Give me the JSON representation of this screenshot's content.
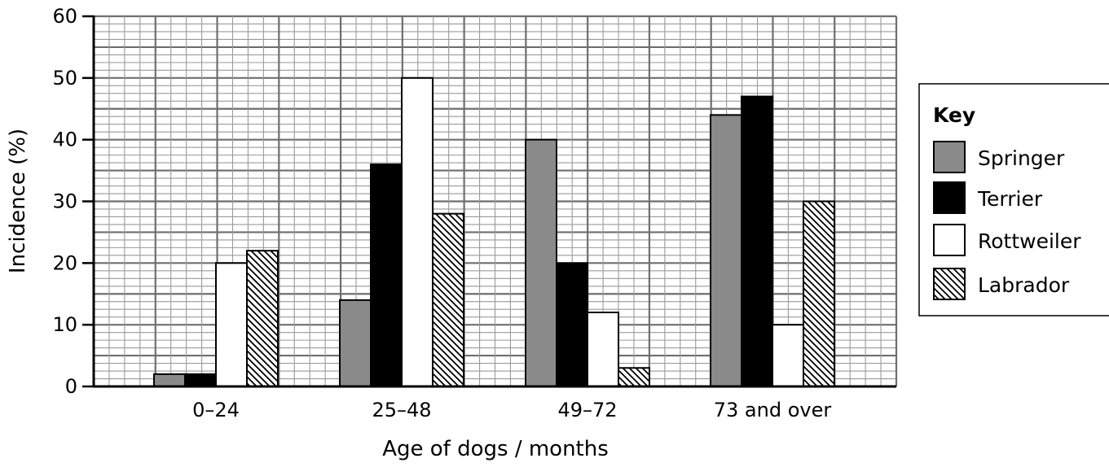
{
  "chart_data": {
    "type": "bar",
    "title": "",
    "xlabel": "Age of dogs / months",
    "ylabel": "Incidence (%)",
    "ylim": [
      0,
      60
    ],
    "yticks": [
      0,
      10,
      20,
      30,
      40,
      50,
      60
    ],
    "grid": true,
    "categories": [
      "0–24",
      "25–48",
      "49–72",
      "73 and over"
    ],
    "series": [
      {
        "name": "Springer",
        "fill": "#8a8a8a",
        "hatch": false,
        "values": [
          2,
          14,
          40,
          44
        ]
      },
      {
        "name": "Terrier",
        "fill": "#000000",
        "hatch": false,
        "values": [
          2,
          36,
          20,
          47
        ]
      },
      {
        "name": "Rottweiler",
        "fill": "#ffffff",
        "hatch": false,
        "values": [
          20,
          50,
          12,
          10
        ]
      },
      {
        "name": "Labrador",
        "fill": "#ffffff",
        "hatch": true,
        "values": [
          22,
          28,
          3,
          30
        ]
      }
    ],
    "legend": {
      "title": "Key",
      "position": "right"
    }
  }
}
